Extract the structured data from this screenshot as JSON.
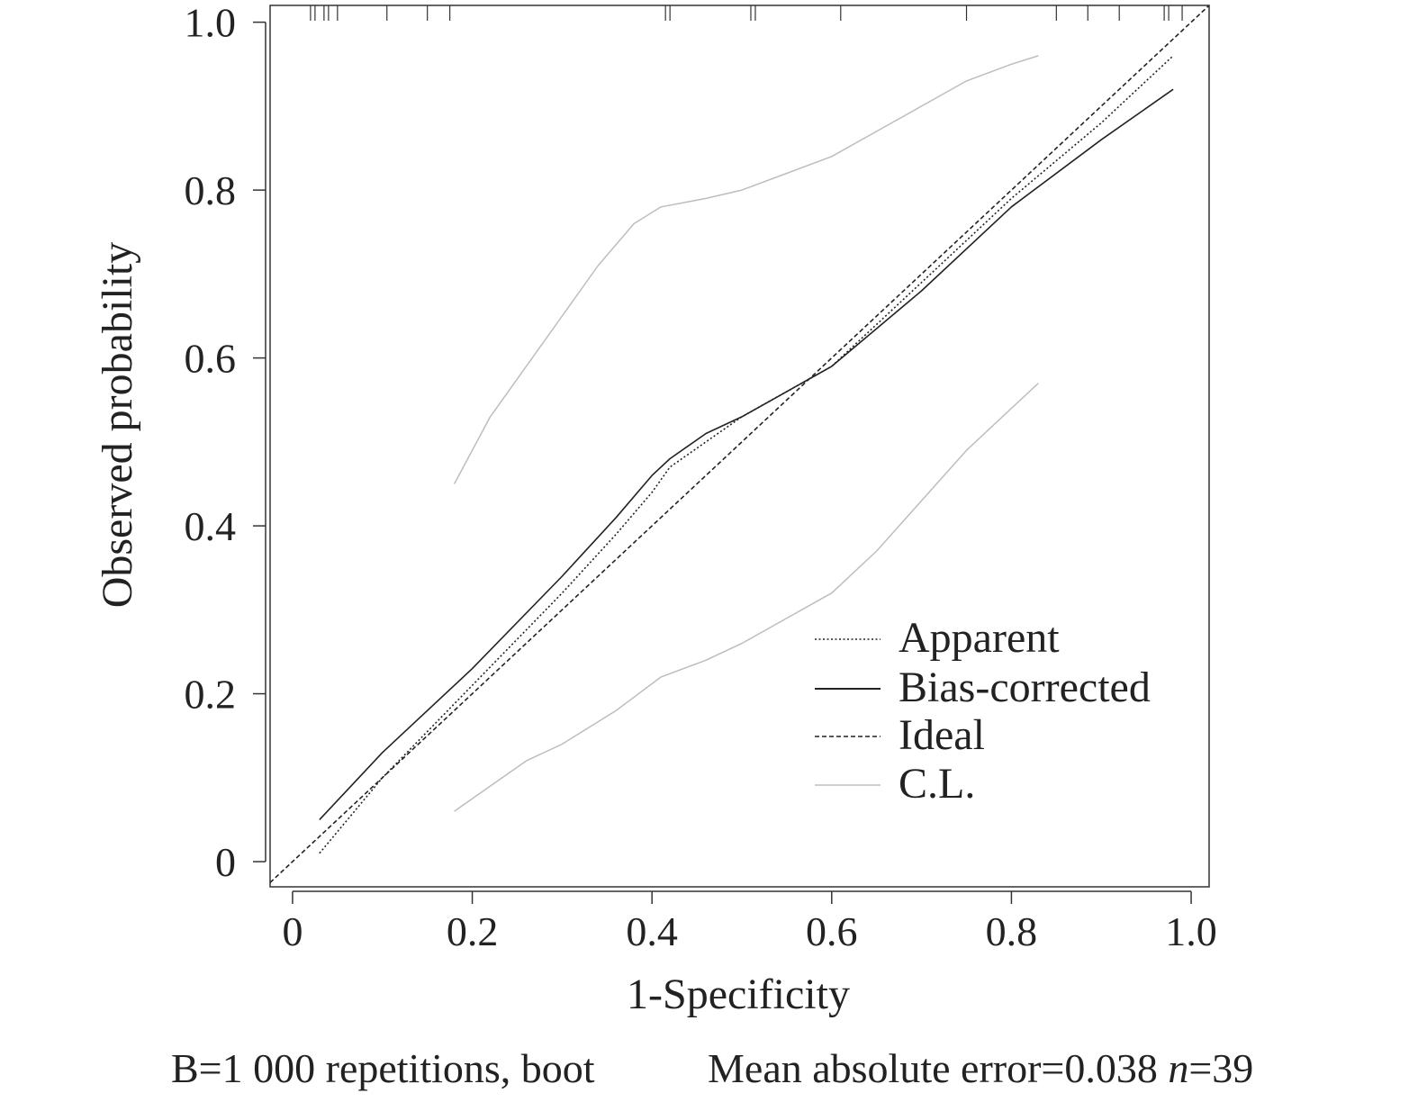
{
  "chart_data": {
    "type": "line",
    "xlabel": "1-Specificity",
    "ylabel": "Observed probability",
    "xlim": [
      -0.025,
      1.02
    ],
    "ylim": [
      -0.03,
      1.02
    ],
    "x_ticks": [
      {
        "value": 0,
        "label": "0"
      },
      {
        "value": 0.2,
        "label": "0.2"
      },
      {
        "value": 0.4,
        "label": "0.4"
      },
      {
        "value": 0.6,
        "label": "0.6"
      },
      {
        "value": 0.8,
        "label": "0.8"
      },
      {
        "value": 1.0,
        "label": "1.0"
      }
    ],
    "y_ticks": [
      {
        "value": 0,
        "label": "0"
      },
      {
        "value": 0.2,
        "label": "0.2"
      },
      {
        "value": 0.4,
        "label": "0.4"
      },
      {
        "value": 0.6,
        "label": "0.6"
      },
      {
        "value": 0.8,
        "label": "0.8"
      },
      {
        "value": 1.0,
        "label": "1.0"
      }
    ],
    "grid": false,
    "legend_position": "bottom-right",
    "series": [
      {
        "name": "Apparent",
        "style": "dotted",
        "color": "#222222",
        "x": [
          0.03,
          0.1,
          0.2,
          0.3,
          0.36,
          0.4,
          0.42,
          0.46,
          0.5,
          0.55,
          0.6,
          0.7,
          0.8,
          0.9,
          0.98
        ],
        "y": [
          0.01,
          0.1,
          0.21,
          0.32,
          0.39,
          0.44,
          0.47,
          0.5,
          0.53,
          0.56,
          0.59,
          0.69,
          0.79,
          0.88,
          0.96
        ]
      },
      {
        "name": "Bias-corrected",
        "style": "solid",
        "color": "#222222",
        "x": [
          0.03,
          0.1,
          0.2,
          0.3,
          0.36,
          0.4,
          0.42,
          0.46,
          0.5,
          0.55,
          0.6,
          0.7,
          0.8,
          0.9,
          0.98
        ],
        "y": [
          0.05,
          0.13,
          0.23,
          0.34,
          0.41,
          0.46,
          0.48,
          0.51,
          0.53,
          0.56,
          0.59,
          0.68,
          0.78,
          0.86,
          0.92
        ]
      },
      {
        "name": "Ideal",
        "style": "dashed",
        "color": "#222222",
        "x": [
          -0.025,
          1.02
        ],
        "y": [
          -0.025,
          1.02
        ]
      },
      {
        "name": "C.L.",
        "style": "solid",
        "color": "#bdbdbd",
        "x": [
          0.18,
          0.22,
          0.26,
          0.3,
          0.34,
          0.38,
          0.41,
          0.46,
          0.5,
          0.55,
          0.6,
          0.65,
          0.7,
          0.75,
          0.8,
          0.83
        ],
        "y": [
          0.45,
          0.53,
          0.59,
          0.65,
          0.71,
          0.76,
          0.78,
          0.79,
          0.8,
          0.82,
          0.84,
          0.87,
          0.9,
          0.93,
          0.95,
          0.96
        ]
      },
      {
        "name": "C.L.",
        "style": "solid",
        "color": "#bdbdbd",
        "legend": false,
        "x": [
          0.18,
          0.22,
          0.26,
          0.3,
          0.36,
          0.41,
          0.46,
          0.5,
          0.55,
          0.6,
          0.65,
          0.7,
          0.75,
          0.8,
          0.83
        ],
        "y": [
          0.06,
          0.09,
          0.12,
          0.14,
          0.18,
          0.22,
          0.24,
          0.26,
          0.29,
          0.32,
          0.37,
          0.43,
          0.49,
          0.54,
          0.57
        ]
      }
    ],
    "rug_x": [
      0.02,
      0.025,
      0.035,
      0.04,
      0.05,
      0.105,
      0.15,
      0.175,
      0.415,
      0.42,
      0.51,
      0.515,
      0.61,
      0.75,
      0.85,
      0.885,
      0.92,
      0.97,
      0.975,
      0.99
    ]
  },
  "footer": {
    "left": "B=1 000 repetitions, boot",
    "right_text": "Mean absolute error=0.038 ",
    "n_label": "n",
    "n_value": "=39"
  }
}
